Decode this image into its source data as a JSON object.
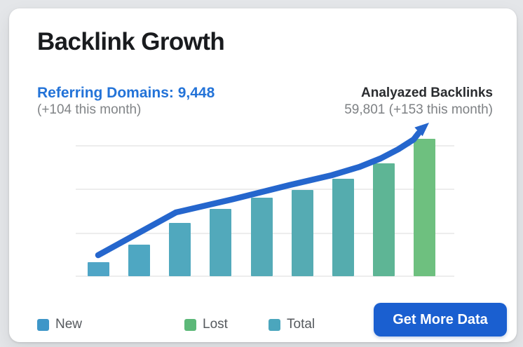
{
  "page": {
    "background": "#e4e6e9"
  },
  "card": {
    "title": "Backlink Growth",
    "referring_domains": {
      "headline": "Referring Domains: 9,448",
      "subtext": "(+104 this month)",
      "accent_color": "#2373d8"
    },
    "analyzed_backlinks": {
      "headline": "Analyazed Backlinks",
      "subtext": "59,801 (+153 this month)"
    }
  },
  "chart_data": {
    "type": "bar",
    "title": "Backlink Growth",
    "categories": [
      "",
      "",
      "",
      "",
      "",
      "",
      "",
      "",
      ""
    ],
    "series": [
      {
        "name": "Total",
        "values": [
          10,
          23,
          39,
          49,
          57,
          63,
          71,
          82,
          100
        ]
      }
    ],
    "bar_colors": [
      "#4fa5c6",
      "#4ea7c2",
      "#50a8be",
      "#52a9bb",
      "#54aab7",
      "#55abb3",
      "#55acae",
      "#5eb595",
      "#6ec07f"
    ],
    "ylim": [
      0,
      100
    ],
    "xlabel": "",
    "ylabel": "",
    "grid": true,
    "gridline_color": "#ededed",
    "x_axis_labels_visible": false,
    "y_axis_labels_visible": false,
    "legend_position": "bottom",
    "trend_arrow": {
      "color": "#2566cd",
      "description": "thick curved blue arrow rising from the first bar to the Analyazed Backlinks label"
    }
  },
  "legend": {
    "items": [
      {
        "label": "New",
        "color": "#3e96c8"
      },
      {
        "label": "Lost",
        "color": "#5cb878"
      },
      {
        "label": "Total",
        "color": "#4ba6bd"
      }
    ]
  },
  "cta": {
    "label": "Get More Data",
    "background": "#1a5fd0",
    "text_color": "#ffffff"
  }
}
